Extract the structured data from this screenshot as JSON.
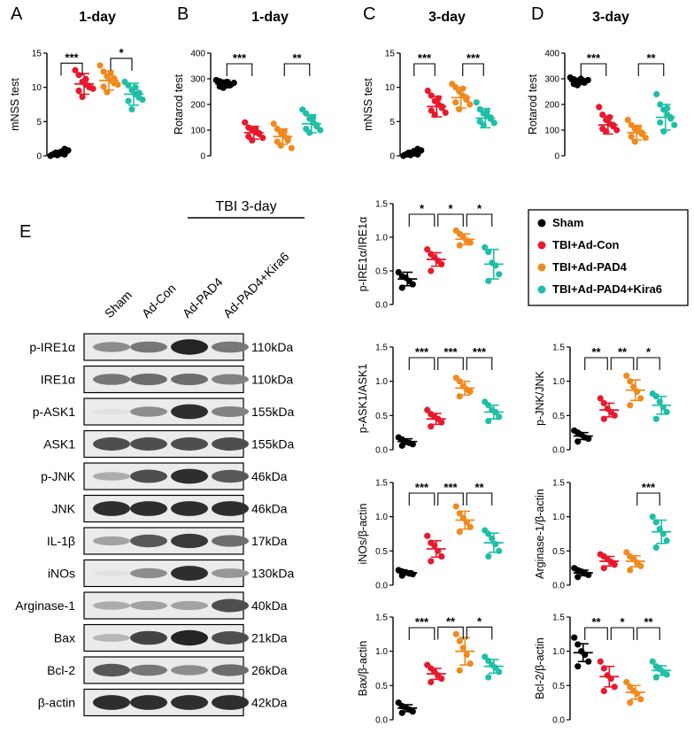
{
  "colors": {
    "sham": "#000000",
    "adcon": "#e8192c",
    "pad4": "#f18a1e",
    "kira": "#1fbfa6"
  },
  "panel_letters": [
    "A",
    "B",
    "C",
    "D",
    "E"
  ],
  "legend": {
    "items": [
      {
        "label": "Sham",
        "color": "#000000"
      },
      {
        "label": "TBI+Ad-Con",
        "color": "#e8192c"
      },
      {
        "label": "TBI+Ad-PAD4",
        "color": "#f18a1e"
      },
      {
        "label": "TBI+Ad-PAD4+Kira6",
        "color": "#1fbfa6"
      }
    ]
  },
  "blot": {
    "group_label": "TBI 3-day",
    "lanes": [
      "Sham",
      "Ad-Con",
      "Ad-PAD4",
      "Ad-PAD4+Kira6"
    ],
    "rows": [
      {
        "protein": "p-IRE1α",
        "kda": "110kDa",
        "intensity": [
          0.45,
          0.55,
          0.95,
          0.55
        ]
      },
      {
        "protein": "IRE1α",
        "kda": "110kDa",
        "intensity": [
          0.55,
          0.6,
          0.6,
          0.5
        ]
      },
      {
        "protein": "p-ASK1",
        "kda": "155kDa",
        "intensity": [
          0.05,
          0.45,
          0.9,
          0.5
        ]
      },
      {
        "protein": "ASK1",
        "kda": "155kDa",
        "intensity": [
          0.75,
          0.75,
          0.75,
          0.75
        ]
      },
      {
        "protein": "p-JNK",
        "kda": "46kDa",
        "intensity": [
          0.3,
          0.75,
          0.9,
          0.7
        ]
      },
      {
        "protein": "JNK",
        "kda": "46kDa",
        "intensity": [
          0.9,
          0.9,
          0.9,
          0.9
        ]
      },
      {
        "protein": "IL-1β",
        "kda": "17kDa",
        "intensity": [
          0.35,
          0.7,
          0.85,
          0.6
        ]
      },
      {
        "protein": "iNOs",
        "kda": "130kDa",
        "intensity": [
          0.05,
          0.45,
          0.9,
          0.4
        ]
      },
      {
        "protein": "Arginase-1",
        "kda": "40kDa",
        "intensity": [
          0.3,
          0.35,
          0.35,
          0.75
        ]
      },
      {
        "protein": "Bax",
        "kda": "21kDa",
        "intensity": [
          0.25,
          0.8,
          0.95,
          0.75
        ]
      },
      {
        "protein": "Bcl-2",
        "kda": "26kDa",
        "intensity": [
          0.7,
          0.55,
          0.45,
          0.6
        ]
      },
      {
        "protein": "β-actin",
        "kda": "42kDa",
        "intensity": [
          0.9,
          0.9,
          0.9,
          0.9
        ]
      }
    ]
  },
  "chart_data": [
    {
      "id": "A",
      "type": "scatter",
      "title": "1-day",
      "ylabel": "mNSS test",
      "ylim": [
        0,
        15
      ],
      "yticks": [
        0,
        5,
        10,
        15
      ],
      "series": [
        {
          "mean": 0.4,
          "sd": 0.4,
          "points": [
            0,
            0.2,
            0.4,
            0.6,
            1.0,
            0.3,
            0.1,
            0.5,
            0.2,
            0.8
          ]
        },
        {
          "mean": 10.5,
          "sd": 1.5,
          "points": [
            12.5,
            11.8,
            10.8,
            10.4,
            10.0,
            9.5,
            8.6,
            11.2,
            10.2,
            9.8
          ]
        },
        {
          "mean": 11.0,
          "sd": 1.4,
          "points": [
            13.2,
            12.3,
            11.6,
            11.0,
            10.6,
            10.1,
            9.3,
            12.0,
            11.3,
            10.4
          ]
        },
        {
          "mean": 9.0,
          "sd": 1.6,
          "points": [
            10.8,
            10.3,
            9.6,
            9.0,
            8.5,
            8.0,
            6.8,
            10.0,
            9.2,
            8.2
          ]
        }
      ],
      "sig": [
        {
          "pair": [
            0,
            1
          ],
          "label": "***"
        },
        {
          "pair": [
            2,
            3
          ],
          "label": "*"
        }
      ]
    },
    {
      "id": "B",
      "type": "scatter",
      "title": "1-day",
      "ylabel": "Rotarod test",
      "ylim": [
        0,
        400
      ],
      "yticks": [
        0,
        100,
        200,
        300,
        400
      ],
      "series": [
        {
          "mean": 280,
          "sd": 15,
          "points": [
            295,
            290,
            285,
            280,
            275,
            270,
            265,
            288,
            278,
            284
          ]
        },
        {
          "mean": 90,
          "sd": 25,
          "points": [
            130,
            110,
            100,
            92,
            85,
            75,
            60,
            105,
            88,
            70
          ]
        },
        {
          "mean": 75,
          "sd": 30,
          "points": [
            125,
            105,
            90,
            75,
            68,
            55,
            40,
            95,
            60,
            30
          ]
        },
        {
          "mean": 125,
          "sd": 35,
          "points": [
            180,
            165,
            145,
            130,
            120,
            105,
            90,
            150,
            115,
            100
          ]
        }
      ],
      "sig": [
        {
          "pair": [
            0,
            1
          ],
          "label": "***"
        },
        {
          "pair": [
            2,
            3
          ],
          "label": "**"
        }
      ]
    },
    {
      "id": "C",
      "type": "scatter",
      "title": "3-day",
      "ylabel": "mNSS test",
      "ylim": [
        0,
        15
      ],
      "yticks": [
        0,
        5,
        10,
        15
      ],
      "series": [
        {
          "mean": 0.4,
          "sd": 0.4,
          "points": [
            0,
            0.2,
            0.4,
            0.7,
            1.0,
            0.3,
            0.1,
            0.5,
            0.2,
            0.8
          ]
        },
        {
          "mean": 7.2,
          "sd": 1.5,
          "points": [
            9.5,
            8.8,
            8.0,
            7.5,
            7.0,
            6.6,
            6.0,
            8.4,
            7.2,
            6.3
          ]
        },
        {
          "mean": 8.5,
          "sd": 1.5,
          "points": [
            10.5,
            10.0,
            9.4,
            8.8,
            8.2,
            7.8,
            6.8,
            9.8,
            8.5,
            7.5
          ]
        },
        {
          "mean": 5.5,
          "sd": 1.4,
          "points": [
            7.8,
            6.8,
            6.2,
            5.8,
            5.4,
            5.0,
            4.5,
            6.5,
            5.6,
            4.8
          ]
        }
      ],
      "sig": [
        {
          "pair": [
            0,
            1
          ],
          "label": "***"
        },
        {
          "pair": [
            2,
            3
          ],
          "label": "***"
        }
      ]
    },
    {
      "id": "D",
      "type": "scatter",
      "title": "3-day",
      "ylabel": "Rotarod test",
      "ylim": [
        0,
        400
      ],
      "yticks": [
        0,
        100,
        200,
        300,
        400
      ],
      "series": [
        {
          "mean": 290,
          "sd": 12,
          "points": [
            305,
            298,
            292,
            288,
            285,
            280,
            275,
            300,
            290,
            295
          ]
        },
        {
          "mean": 120,
          "sd": 35,
          "points": [
            190,
            160,
            140,
            125,
            115,
            105,
            95,
            150,
            120,
            100
          ]
        },
        {
          "mean": 90,
          "sd": 28,
          "points": [
            140,
            120,
            105,
            95,
            85,
            75,
            55,
            110,
            90,
            70
          ]
        },
        {
          "mean": 150,
          "sd": 50,
          "points": [
            240,
            200,
            180,
            160,
            145,
            130,
            95,
            185,
            150,
            120
          ]
        }
      ],
      "sig": [
        {
          "pair": [
            0,
            1
          ],
          "label": "***"
        },
        {
          "pair": [
            2,
            3
          ],
          "label": "**"
        }
      ]
    },
    {
      "id": "ire",
      "type": "scatter",
      "ylabel": "p-IRE1α/IRE1α",
      "ylim": [
        0,
        1.5
      ],
      "yticks": [
        0.0,
        0.5,
        1.0,
        1.5
      ],
      "series": [
        {
          "mean": 0.38,
          "sd": 0.1,
          "points": [
            0.48,
            0.42,
            0.4,
            0.35,
            0.3,
            0.25
          ]
        },
        {
          "mean": 0.67,
          "sd": 0.1,
          "points": [
            0.82,
            0.75,
            0.7,
            0.65,
            0.6,
            0.5
          ]
        },
        {
          "mean": 0.97,
          "sd": 0.08,
          "points": [
            1.1,
            1.05,
            1.0,
            0.95,
            0.92,
            0.88
          ]
        },
        {
          "mean": 0.6,
          "sd": 0.22,
          "points": [
            0.85,
            0.78,
            0.62,
            0.58,
            0.45,
            0.35
          ]
        }
      ],
      "sig": [
        {
          "pair": [
            0,
            1
          ],
          "label": "*"
        },
        {
          "pair": [
            1,
            2
          ],
          "label": "*"
        },
        {
          "pair": [
            2,
            3
          ],
          "label": "*"
        }
      ]
    },
    {
      "id": "ask",
      "type": "scatter",
      "ylabel": "p-ASK1/ASK1",
      "ylim": [
        0,
        1.5
      ],
      "yticks": [
        0.0,
        0.5,
        1.0,
        1.5
      ],
      "series": [
        {
          "mean": 0.12,
          "sd": 0.04,
          "points": [
            0.18,
            0.15,
            0.12,
            0.1,
            0.08,
            0.06
          ]
        },
        {
          "mean": 0.45,
          "sd": 0.08,
          "points": [
            0.58,
            0.52,
            0.48,
            0.45,
            0.4,
            0.34
          ]
        },
        {
          "mean": 0.9,
          "sd": 0.1,
          "points": [
            1.05,
            1.0,
            0.93,
            0.88,
            0.85,
            0.78
          ]
        },
        {
          "mean": 0.55,
          "sd": 0.1,
          "points": [
            0.7,
            0.65,
            0.58,
            0.55,
            0.48,
            0.42
          ]
        }
      ],
      "sig": [
        {
          "pair": [
            0,
            1
          ],
          "label": "***"
        },
        {
          "pair": [
            1,
            2
          ],
          "label": "***"
        },
        {
          "pair": [
            2,
            3
          ],
          "label": "***"
        }
      ]
    },
    {
      "id": "jnk",
      "type": "scatter",
      "ylabel": "p-JNK/JNK",
      "ylim": [
        0,
        1.5
      ],
      "yticks": [
        0.0,
        0.5,
        1.0,
        1.5
      ],
      "series": [
        {
          "mean": 0.2,
          "sd": 0.05,
          "points": [
            0.28,
            0.25,
            0.22,
            0.18,
            0.16,
            0.12
          ]
        },
        {
          "mean": 0.58,
          "sd": 0.1,
          "points": [
            0.75,
            0.68,
            0.6,
            0.55,
            0.5,
            0.45
          ]
        },
        {
          "mean": 0.87,
          "sd": 0.15,
          "points": [
            1.08,
            1.0,
            0.92,
            0.85,
            0.75,
            0.65
          ]
        },
        {
          "mean": 0.65,
          "sd": 0.13,
          "points": [
            0.82,
            0.78,
            0.7,
            0.62,
            0.55,
            0.45
          ]
        }
      ],
      "sig": [
        {
          "pair": [
            0,
            1
          ],
          "label": "**"
        },
        {
          "pair": [
            1,
            2
          ],
          "label": "**"
        },
        {
          "pair": [
            2,
            3
          ],
          "label": "*"
        }
      ]
    },
    {
      "id": "inos",
      "type": "scatter",
      "ylabel": "iNOs/β-actin",
      "ylim": [
        0,
        1.5
      ],
      "yticks": [
        0.0,
        0.5,
        1.0,
        1.5
      ],
      "series": [
        {
          "mean": 0.18,
          "sd": 0.03,
          "points": [
            0.22,
            0.2,
            0.19,
            0.17,
            0.16,
            0.14
          ]
        },
        {
          "mean": 0.53,
          "sd": 0.12,
          "points": [
            0.72,
            0.62,
            0.58,
            0.5,
            0.42,
            0.35
          ]
        },
        {
          "mean": 0.95,
          "sd": 0.13,
          "points": [
            1.15,
            1.05,
            0.98,
            0.92,
            0.85,
            0.78
          ]
        },
        {
          "mean": 0.62,
          "sd": 0.14,
          "points": [
            0.8,
            0.75,
            0.68,
            0.6,
            0.5,
            0.42
          ]
        }
      ],
      "sig": [
        {
          "pair": [
            0,
            1
          ],
          "label": "***"
        },
        {
          "pair": [
            1,
            2
          ],
          "label": "***"
        },
        {
          "pair": [
            2,
            3
          ],
          "label": "**"
        }
      ]
    },
    {
      "id": "arg",
      "type": "scatter",
      "ylabel": "Arginase-1/β-actin",
      "ylim": [
        0,
        1.5
      ],
      "yticks": [
        0.0,
        0.5,
        1.0,
        1.5
      ],
      "series": [
        {
          "mean": 0.18,
          "sd": 0.04,
          "points": [
            0.25,
            0.22,
            0.2,
            0.17,
            0.15,
            0.12
          ]
        },
        {
          "mean": 0.35,
          "sd": 0.07,
          "points": [
            0.45,
            0.42,
            0.38,
            0.34,
            0.3,
            0.25
          ]
        },
        {
          "mean": 0.35,
          "sd": 0.08,
          "points": [
            0.48,
            0.42,
            0.38,
            0.33,
            0.28,
            0.22
          ]
        },
        {
          "mean": 0.78,
          "sd": 0.17,
          "points": [
            1.0,
            0.92,
            0.82,
            0.75,
            0.65,
            0.55
          ]
        }
      ],
      "sig": [
        {
          "pair": [
            2,
            3
          ],
          "label": "***"
        }
      ]
    },
    {
      "id": "bax",
      "type": "scatter",
      "ylabel": "Bax/β-actin",
      "ylim": [
        0,
        1.5
      ],
      "yticks": [
        0.0,
        0.5,
        1.0,
        1.5
      ],
      "series": [
        {
          "mean": 0.17,
          "sd": 0.05,
          "points": [
            0.25,
            0.2,
            0.18,
            0.15,
            0.12,
            0.1
          ]
        },
        {
          "mean": 0.67,
          "sd": 0.08,
          "points": [
            0.8,
            0.75,
            0.7,
            0.65,
            0.6,
            0.55
          ]
        },
        {
          "mean": 1.0,
          "sd": 0.2,
          "points": [
            1.25,
            1.15,
            1.05,
            0.95,
            0.82,
            0.72
          ]
        },
        {
          "mean": 0.78,
          "sd": 0.1,
          "points": [
            0.92,
            0.86,
            0.8,
            0.76,
            0.7,
            0.62
          ]
        }
      ],
      "sig": [
        {
          "pair": [
            0,
            1
          ],
          "label": "***"
        },
        {
          "pair": [
            1,
            2
          ],
          "label": "**"
        },
        {
          "pair": [
            2,
            3
          ],
          "label": "*"
        }
      ]
    },
    {
      "id": "bcl",
      "type": "scatter",
      "ylabel": "Bcl-2/β-actin",
      "ylim": [
        0,
        1.5
      ],
      "yticks": [
        0.0,
        0.5,
        1.0,
        1.5
      ],
      "series": [
        {
          "mean": 0.98,
          "sd": 0.13,
          "points": [
            1.2,
            1.1,
            1.0,
            0.95,
            0.85,
            0.78
          ]
        },
        {
          "mean": 0.63,
          "sd": 0.15,
          "points": [
            0.85,
            0.75,
            0.65,
            0.6,
            0.48,
            0.42
          ]
        },
        {
          "mean": 0.4,
          "sd": 0.1,
          "points": [
            0.55,
            0.48,
            0.42,
            0.38,
            0.3,
            0.25
          ]
        },
        {
          "mean": 0.72,
          "sd": 0.07,
          "points": [
            0.85,
            0.78,
            0.74,
            0.7,
            0.66,
            0.62
          ]
        }
      ],
      "sig": [
        {
          "pair": [
            0,
            1
          ],
          "label": "**"
        },
        {
          "pair": [
            1,
            2
          ],
          "label": "*"
        },
        {
          "pair": [
            2,
            3
          ],
          "label": "**"
        }
      ]
    }
  ]
}
